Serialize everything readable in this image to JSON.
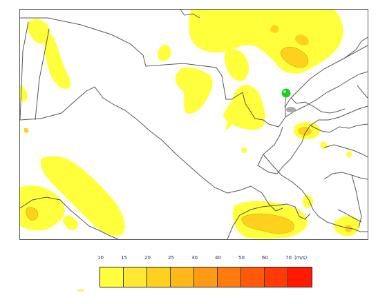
{
  "legend": {
    "ticks": [
      "10",
      "15",
      "20",
      "25",
      "30",
      "40",
      "50",
      "60",
      "70"
    ],
    "unit": "(m/s)",
    "colors": [
      "#ffff3c",
      "#ffe833",
      "#ffd11f",
      "#ffb81a",
      "#ff9a14",
      "#ff7a0f",
      "#ff5a0a",
      "#ff3a05",
      "#ff1a00"
    ]
  },
  "map": {
    "land_color": "#ffffff",
    "border_color": "#555555",
    "wind_light_color": "#ffff3c",
    "wind_medium_color": "#ffd11f",
    "marker_color": "#22cc22"
  }
}
